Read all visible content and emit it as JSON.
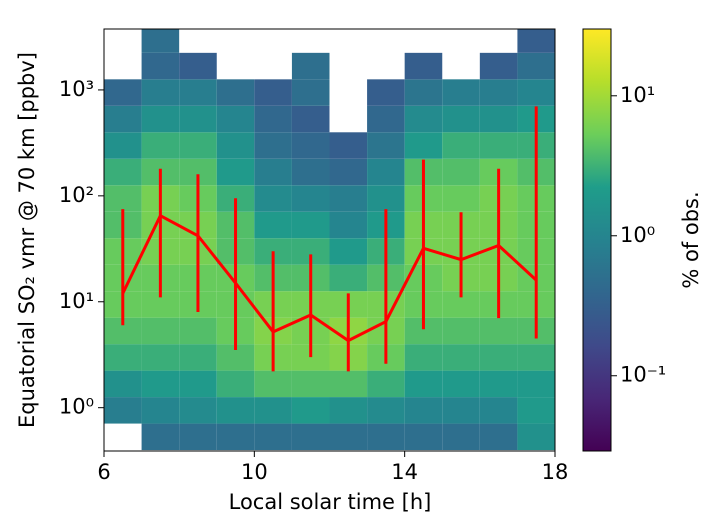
{
  "chart_data": {
    "type": "heatmap",
    "xlabel": "Local solar time [h]",
    "ylabel": "Equatorial SO₂ vmr @ 70 km [ppbv]",
    "xlim": [
      6,
      18
    ],
    "xticks": [
      6,
      10,
      14,
      18
    ],
    "ylim": [
      0.39,
      3760
    ],
    "yscale": "log",
    "yticks": [
      {
        "value": 1,
        "label": "10⁰"
      },
      {
        "value": 10,
        "label": "10¹"
      },
      {
        "value": 100,
        "label": "10²"
      },
      {
        "value": 1000,
        "label": "10³"
      }
    ],
    "heatmap": {
      "xbins": [
        6,
        7,
        8,
        9,
        10,
        11,
        12,
        13,
        14,
        15,
        16,
        17,
        18
      ],
      "ybins": [
        0.398,
        0.708,
        1.259,
        2.239,
        3.981,
        7.079,
        12.59,
        22.39,
        39.81,
        70.79,
        125.9,
        223.9,
        398.1,
        707.9,
        1259,
        2239,
        3981
      ],
      "z": [
        [
          null,
          0.5,
          0.5,
          0.5,
          0.5,
          0.5,
          0.5,
          0.5,
          0.5,
          0.5,
          0.5,
          1.5
        ],
        [
          0.8,
          1,
          1.2,
          1.5,
          1.5,
          2,
          1.5,
          1.2,
          1,
          1,
          1,
          2
        ],
        [
          1.5,
          2,
          2,
          3,
          4,
          4,
          4,
          3,
          2,
          2,
          2,
          2
        ],
        [
          3,
          3,
          3,
          4,
          6,
          6,
          7,
          5,
          3,
          3,
          3,
          3
        ],
        [
          4,
          4,
          4,
          5,
          7,
          6,
          8,
          6,
          4,
          4,
          4,
          4
        ],
        [
          5,
          5,
          5,
          5,
          6,
          6,
          6,
          6,
          5,
          5,
          5,
          5
        ],
        [
          5,
          5,
          5,
          5,
          4,
          4,
          3,
          4,
          5,
          6,
          6,
          5
        ],
        [
          5,
          6,
          6,
          4,
          3,
          3,
          2,
          3,
          6,
          6,
          6,
          5
        ],
        [
          4,
          6,
          6,
          4,
          2,
          2,
          1,
          2,
          6,
          6,
          6,
          5
        ],
        [
          4,
          6,
          5,
          3,
          1.2,
          1,
          0.8,
          1.5,
          5,
          5,
          6,
          5
        ],
        [
          3,
          4,
          4,
          2,
          0.8,
          0.5,
          0.4,
          1,
          4,
          4,
          5,
          4
        ],
        [
          1.5,
          3,
          3,
          1.5,
          0.5,
          0.4,
          0.3,
          0.6,
          2,
          3,
          3,
          3
        ],
        [
          0.8,
          1.5,
          1.5,
          1,
          0.4,
          0.3,
          null,
          0.4,
          1.2,
          1.5,
          1.5,
          2
        ],
        [
          0.4,
          0.8,
          0.8,
          0.5,
          0.3,
          0.5,
          null,
          0.3,
          0.6,
          0.8,
          0.8,
          1
        ],
        [
          null,
          0.4,
          0.3,
          null,
          null,
          0.5,
          null,
          null,
          0.3,
          null,
          0.3,
          0.5
        ],
        [
          null,
          0.5,
          null,
          null,
          null,
          null,
          null,
          null,
          null,
          null,
          null,
          0.3
        ]
      ]
    },
    "line": {
      "color": "#ff0000",
      "x": [
        6.5,
        7.5,
        8.5,
        9.5,
        10.5,
        11.5,
        12.5,
        13.5,
        14.5,
        15.5,
        16.5,
        17.5
      ],
      "values": [
        12,
        65,
        42,
        15,
        5.2,
        7.5,
        4.3,
        6.5,
        32,
        25,
        34,
        16
      ],
      "err_low": [
        6,
        11,
        8,
        3.5,
        2.2,
        3,
        2.2,
        2.6,
        5.5,
        11,
        7,
        4.5
      ],
      "err_high": [
        75,
        180,
        160,
        95,
        30,
        28,
        12,
        75,
        220,
        70,
        180,
        700
      ]
    },
    "colorbar": {
      "label": "% of obs.",
      "colormap": "viridis",
      "clim": [
        0.029,
        30
      ],
      "scale": "log",
      "ticks": [
        {
          "value": 0.1,
          "label": "10⁻¹"
        },
        {
          "value": 1,
          "label": "10⁰"
        },
        {
          "value": 10,
          "label": "10¹"
        }
      ]
    }
  }
}
